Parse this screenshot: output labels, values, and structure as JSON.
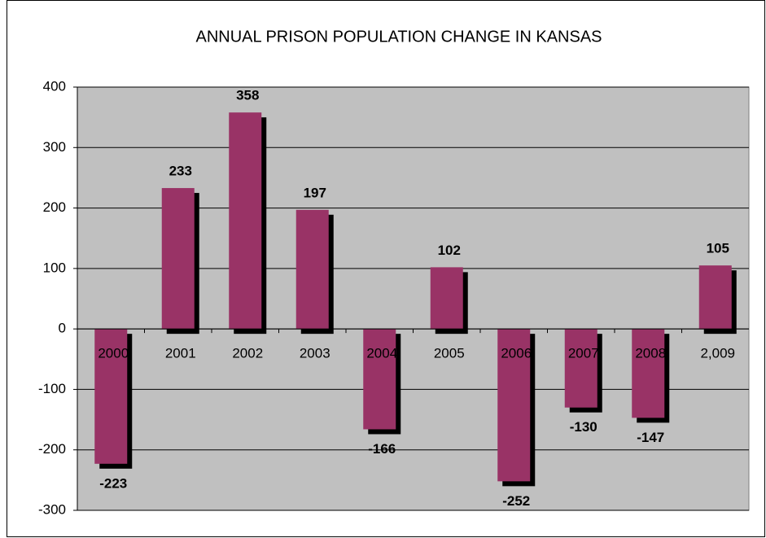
{
  "chart_data": {
    "type": "bar",
    "title": "ANNUAL PRISON POPULATION CHANGE IN KANSAS",
    "categories": [
      "2000",
      "2001",
      "2002",
      "2003",
      "2004",
      "2005",
      "2006",
      "2007",
      "2008",
      "2,009"
    ],
    "values": [
      -223,
      233,
      358,
      197,
      -166,
      102,
      -252,
      -130,
      -147,
      105
    ],
    "color": "#993366",
    "ylim": [
      -300,
      400
    ],
    "yticks": [
      -300,
      -200,
      -100,
      0,
      100,
      200,
      300,
      400
    ],
    "grid": true
  }
}
